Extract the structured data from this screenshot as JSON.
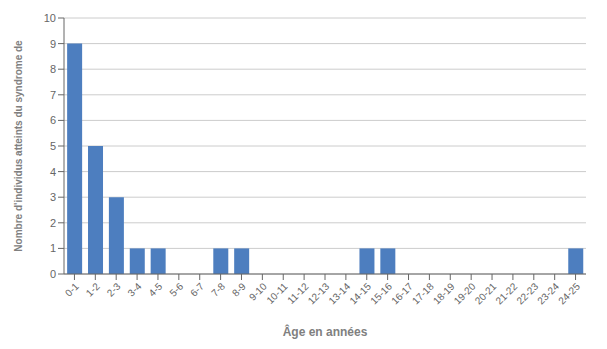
{
  "chart_data": {
    "type": "bar",
    "categories": [
      "0-1",
      "1-2",
      "2-3",
      "3-4",
      "4-5",
      "5-6",
      "6-7",
      "7-8",
      "8-9",
      "9-10",
      "10-11",
      "11-12",
      "12-13",
      "13-14",
      "14-15",
      "15-16",
      "16-17",
      "17-18",
      "18-19",
      "19-20",
      "20-21",
      "21-22",
      "22-23",
      "23-24",
      "24-25"
    ],
    "values": [
      9,
      5,
      3,
      1,
      1,
      0,
      0,
      1,
      1,
      0,
      0,
      0,
      0,
      0,
      1,
      1,
      0,
      0,
      0,
      0,
      0,
      0,
      0,
      0,
      1
    ],
    "color": "#4d7ebf",
    "xlabel": "Âge en années",
    "ylabel": "Nombre d'individus atteints du syndrome de",
    "ylim": [
      0,
      10
    ],
    "yticks": [
      0,
      1,
      2,
      3,
      4,
      5,
      6,
      7,
      8,
      9,
      10
    ],
    "grid": true
  }
}
